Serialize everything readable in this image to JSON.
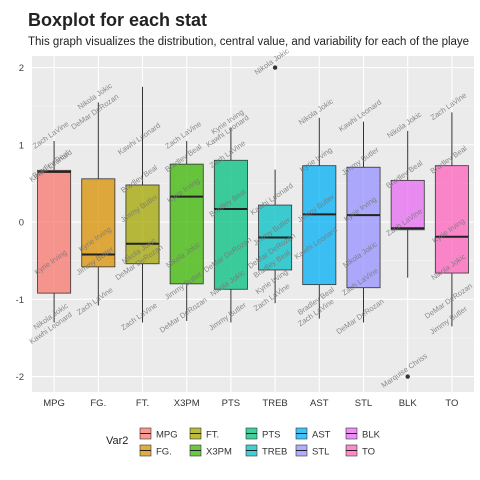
{
  "chart_data": {
    "type": "boxplot",
    "title": "Boxplot for each stat",
    "subtitle": "This graph visualizes the distribution, central value, and variability for each of the playe",
    "xlabel": "",
    "ylabel": "",
    "ylim": [
      -2.2,
      2.15
    ],
    "yticks": [
      -2,
      -1,
      0,
      1,
      2
    ],
    "grid": true,
    "legend_position": "bottom",
    "legend_title": "Var2",
    "categories": [
      "MPG",
      "FG.",
      "FT.",
      "X3PM",
      "PTS",
      "TREB",
      "AST",
      "STL",
      "BLK",
      "TO"
    ],
    "colors": [
      "#F8766D",
      "#D89000",
      "#A3A500",
      "#39B600",
      "#00BF7D",
      "#00BFC4",
      "#00B0F6",
      "#9590FF",
      "#E76BF3",
      "#FF62BC"
    ],
    "boxes": [
      {
        "name": "MPG",
        "min": -1.3,
        "q1": -0.92,
        "median": 0.65,
        "q3": 0.67,
        "max": 1.05,
        "outliers": []
      },
      {
        "name": "FG.",
        "min": -1.08,
        "q1": -0.58,
        "median": -0.42,
        "q3": 0.56,
        "max": 1.55,
        "outliers": []
      },
      {
        "name": "FT.",
        "min": -1.3,
        "q1": -0.54,
        "median": -0.28,
        "q3": 0.48,
        "max": 1.75,
        "outliers": []
      },
      {
        "name": "X3PM",
        "min": -1.28,
        "q1": -0.8,
        "median": 0.33,
        "q3": 0.75,
        "max": 1.05,
        "outliers": []
      },
      {
        "name": "PTS",
        "min": -1.3,
        "q1": -0.87,
        "median": 0.17,
        "q3": 0.8,
        "max": 1.22,
        "outliers": []
      },
      {
        "name": "TREB",
        "min": -1.05,
        "q1": -0.62,
        "median": -0.2,
        "q3": 0.22,
        "max": 0.68,
        "outliers": [
          2.0
        ]
      },
      {
        "name": "AST",
        "min": -1.25,
        "q1": -0.81,
        "median": 0.1,
        "q3": 0.73,
        "max": 1.35,
        "outliers": []
      },
      {
        "name": "STL",
        "min": -1.3,
        "q1": -0.85,
        "median": 0.09,
        "q3": 0.71,
        "max": 1.3,
        "outliers": []
      },
      {
        "name": "BLK",
        "min": -0.72,
        "q1": -0.1,
        "median": -0.08,
        "q3": 0.54,
        "max": 1.18,
        "outliers": [
          -2.0
        ]
      },
      {
        "name": "TO",
        "min": -1.35,
        "q1": -0.66,
        "median": -0.19,
        "q3": 0.73,
        "max": 1.42,
        "outliers": []
      }
    ],
    "annotations": [
      {
        "x": "MPG",
        "y": 1.05,
        "text": "Zach LaVine"
      },
      {
        "x": "MPG",
        "y": 0.67,
        "text": "Bradley Beal"
      },
      {
        "x": "MPG",
        "y": 0.65,
        "text": "Kawhi Leonard"
      },
      {
        "x": "MPG",
        "y": -0.6,
        "text": "Kyrie Irving"
      },
      {
        "x": "MPG",
        "y": -1.3,
        "text": "Nikola Jokic"
      },
      {
        "x": "MPG",
        "y": -1.45,
        "text": "Kawhi Leonard"
      },
      {
        "x": "FG.",
        "y": 1.55,
        "text": "Nikola Jokic"
      },
      {
        "x": "FG.",
        "y": 1.35,
        "text": "DeMar DeRozan"
      },
      {
        "x": "FG.",
        "y": -0.3,
        "text": "Kyrie Irving"
      },
      {
        "x": "FG.",
        "y": -0.58,
        "text": "Jimmy Butler"
      },
      {
        "x": "FG.",
        "y": -1.1,
        "text": "Zach LaVine"
      },
      {
        "x": "FT.",
        "y": 1.0,
        "text": "Kawhi Leonard"
      },
      {
        "x": "FT.",
        "y": 0.48,
        "text": "Bradley Beal"
      },
      {
        "x": "FT.",
        "y": 0.1,
        "text": "Jimmy Butler"
      },
      {
        "x": "FT.",
        "y": -0.45,
        "text": "Nikola Jokic"
      },
      {
        "x": "FT.",
        "y": -0.6,
        "text": "DeMar DeRozan"
      },
      {
        "x": "FT.",
        "y": -1.3,
        "text": "Zach LaVine"
      },
      {
        "x": "X3PM",
        "y": 1.05,
        "text": "Zach LaVine"
      },
      {
        "x": "X3PM",
        "y": 0.75,
        "text": "Bradley Beal"
      },
      {
        "x": "X3PM",
        "y": 0.33,
        "text": "Kyrie Irving"
      },
      {
        "x": "X3PM",
        "y": -0.5,
        "text": "Nikola Jokic"
      },
      {
        "x": "X3PM",
        "y": -0.9,
        "text": "Jimmy Butler"
      },
      {
        "x": "X3PM",
        "y": -1.28,
        "text": "DeMar DeRozan"
      },
      {
        "x": "PTS",
        "y": 1.22,
        "text": "Kyrie Irving"
      },
      {
        "x": "PTS",
        "y": 1.1,
        "text": "Kawhi Leonard"
      },
      {
        "x": "PTS",
        "y": 0.8,
        "text": "Zach LaVine"
      },
      {
        "x": "PTS",
        "y": 0.17,
        "text": "Bradley Beal"
      },
      {
        "x": "PTS",
        "y": -0.5,
        "text": "DeMar DeRozan"
      },
      {
        "x": "PTS",
        "y": -0.87,
        "text": "Nikola Jokic"
      },
      {
        "x": "PTS",
        "y": -1.3,
        "text": "Jimmy Butler"
      },
      {
        "x": "TREB",
        "y": 2.0,
        "text": "Nikola Jokic"
      },
      {
        "x": "TREB",
        "y": 0.22,
        "text": "Kawhi Leonard"
      },
      {
        "x": "TREB",
        "y": -0.2,
        "text": "Jimmy Butler"
      },
      {
        "x": "TREB",
        "y": -0.45,
        "text": "DeMar DeRozan"
      },
      {
        "x": "TREB",
        "y": -0.62,
        "text": "Bradley Beal"
      },
      {
        "x": "TREB",
        "y": -0.85,
        "text": "Kyrie Irving"
      },
      {
        "x": "TREB",
        "y": -1.05,
        "text": "Zach LaVine"
      },
      {
        "x": "AST",
        "y": 1.35,
        "text": "Nikola Jokic"
      },
      {
        "x": "AST",
        "y": 0.73,
        "text": "Kyrie Irving"
      },
      {
        "x": "AST",
        "y": 0.1,
        "text": "Jimmy Butler"
      },
      {
        "x": "AST",
        "y": -0.35,
        "text": "Kawhi Leonard"
      },
      {
        "x": "AST",
        "y": -1.1,
        "text": "Bradley Beal"
      },
      {
        "x": "AST",
        "y": -1.25,
        "text": "Zach LaVine"
      },
      {
        "x": "STL",
        "y": 1.3,
        "text": "Kawhi Leonard"
      },
      {
        "x": "STL",
        "y": 0.71,
        "text": "Jimmy Butler"
      },
      {
        "x": "STL",
        "y": 0.09,
        "text": "Kyrie Irving"
      },
      {
        "x": "STL",
        "y": -0.5,
        "text": "Nikola Jokic"
      },
      {
        "x": "STL",
        "y": -0.85,
        "text": "Zach LaVine"
      },
      {
        "x": "STL",
        "y": -1.3,
        "text": "DeMar DeRozan"
      },
      {
        "x": "BLK",
        "y": 1.18,
        "text": "Nikola Jokic"
      },
      {
        "x": "BLK",
        "y": 0.54,
        "text": "Bradley Beal"
      },
      {
        "x": "BLK",
        "y": -0.08,
        "text": "Zach LaVine"
      },
      {
        "x": "BLK",
        "y": -2.0,
        "text": "Marquise Chriss"
      },
      {
        "x": "TO",
        "y": 1.42,
        "text": "Zach LaVine"
      },
      {
        "x": "TO",
        "y": 0.73,
        "text": "Bradley Beal"
      },
      {
        "x": "TO",
        "y": -0.19,
        "text": "Kyrie Irving"
      },
      {
        "x": "TO",
        "y": -0.66,
        "text": "Nikola Jokic"
      },
      {
        "x": "TO",
        "y": -1.1,
        "text": "DeMar DeRozan"
      },
      {
        "x": "TO",
        "y": -1.35,
        "text": "Jimmy Butler"
      }
    ]
  }
}
